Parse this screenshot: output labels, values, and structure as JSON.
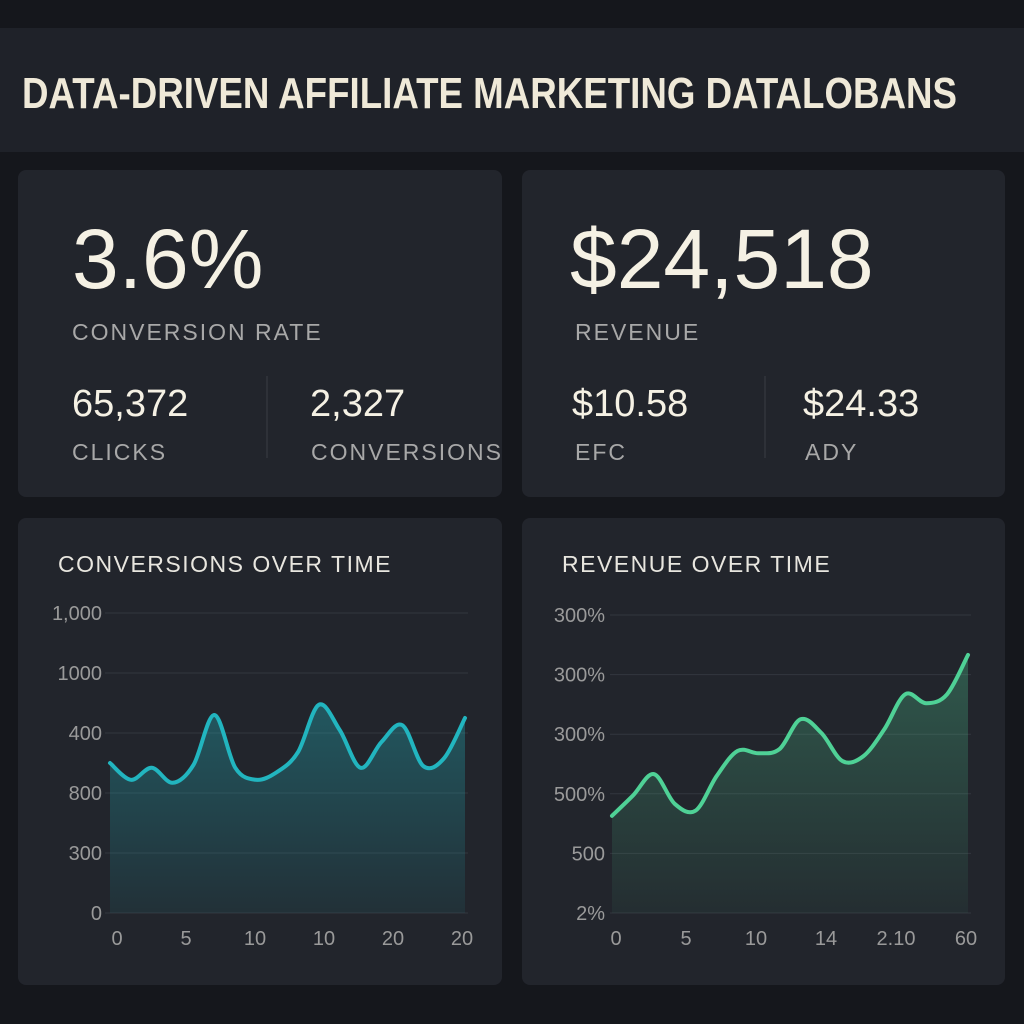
{
  "header": {
    "title": "DATA-DRIVEN AFFILIATE MARKETING DATALOBANS"
  },
  "kpis": [
    {
      "value": "3.6%",
      "label": "CONVERSION RATE",
      "sub": [
        {
          "value": "65,372",
          "label": "CLICKS"
        },
        {
          "value": "2,327",
          "label": "CONVERSIONS"
        }
      ]
    },
    {
      "value": "$24,518",
      "label": "REVENUE",
      "sub": [
        {
          "value": "$10.58",
          "label": "EFC"
        },
        {
          "value": "$24.33",
          "label": "ADY"
        }
      ]
    }
  ],
  "chart_data": [
    {
      "type": "line",
      "title": "CONVERSIONS OVER TIME",
      "color": "#22b5bf",
      "y_axis_labels": [
        "1,000",
        "1000",
        "400",
        "800",
        "300",
        "0"
      ],
      "x_axis_labels": [
        "0",
        "5",
        "10",
        "10",
        "20",
        "20"
      ],
      "ylim": [
        0,
        5
      ],
      "values": [
        2.5,
        2.22,
        2.42,
        2.17,
        2.47,
        3.3,
        2.42,
        2.22,
        2.35,
        2.68,
        3.47,
        3.05,
        2.42,
        2.85,
        3.13,
        2.45,
        2.58,
        3.25
      ]
    },
    {
      "type": "line",
      "title": "REVENUE OVER TIME",
      "color": "#4fd196",
      "y_axis_labels": [
        "300%",
        "300%",
        "300%",
        "500%",
        "500",
        "2%"
      ],
      "x_axis_labels": [
        "0",
        "5",
        "10",
        "14",
        "2.10",
        "60"
      ],
      "ylim": [
        0,
        5
      ],
      "values": [
        1.63,
        1.97,
        2.33,
        1.83,
        1.72,
        2.3,
        2.72,
        2.68,
        2.75,
        3.25,
        3.02,
        2.55,
        2.63,
        3.08,
        3.67,
        3.52,
        3.67,
        4.33
      ]
    }
  ]
}
